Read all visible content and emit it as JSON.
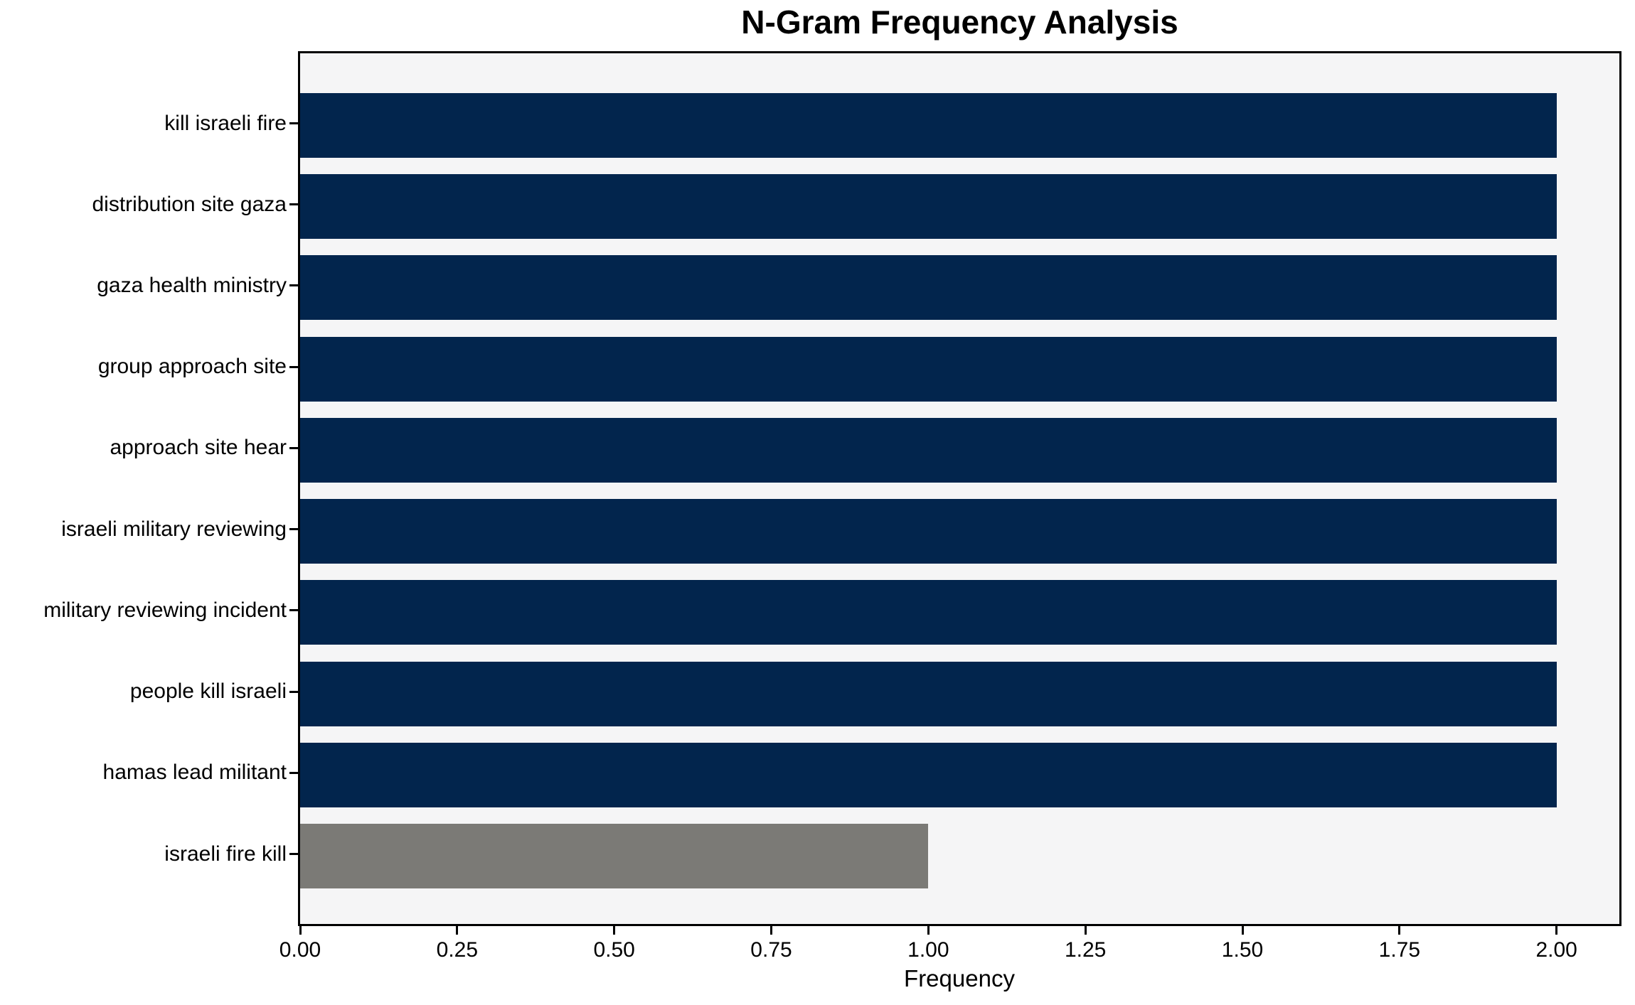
{
  "chart_data": {
    "type": "bar",
    "orientation": "horizontal",
    "title": "N-Gram Frequency Analysis",
    "xlabel": "Frequency",
    "ylabel": "",
    "categories": [
      "kill israeli fire",
      "distribution site gaza",
      "gaza health ministry",
      "group approach site",
      "approach site hear",
      "israeli military reviewing",
      "military reviewing incident",
      "people kill israeli",
      "hamas lead militant",
      "israeli fire kill"
    ],
    "values": [
      2,
      2,
      2,
      2,
      2,
      2,
      2,
      2,
      2,
      1
    ],
    "bar_colors": [
      "#02254d",
      "#02254d",
      "#02254d",
      "#02254d",
      "#02254d",
      "#02254d",
      "#02254d",
      "#02254d",
      "#02254d",
      "#7b7a76"
    ],
    "xlim": [
      0,
      2.1
    ],
    "x_tick_values": [
      0,
      0.25,
      0.5,
      0.75,
      1.0,
      1.25,
      1.5,
      1.75,
      2.0
    ],
    "x_tick_labels": [
      "0.00",
      "0.25",
      "0.50",
      "0.75",
      "1.00",
      "1.25",
      "1.50",
      "1.75",
      "2.00"
    ],
    "grid": false,
    "legend": null,
    "colors": {
      "bar_default": "#02254d",
      "bar_highlight": "#7b7a76",
      "plot_background": "#f5f5f6",
      "figure_background": "#ffffff",
      "axis": "#000000",
      "text": "#000000"
    }
  }
}
